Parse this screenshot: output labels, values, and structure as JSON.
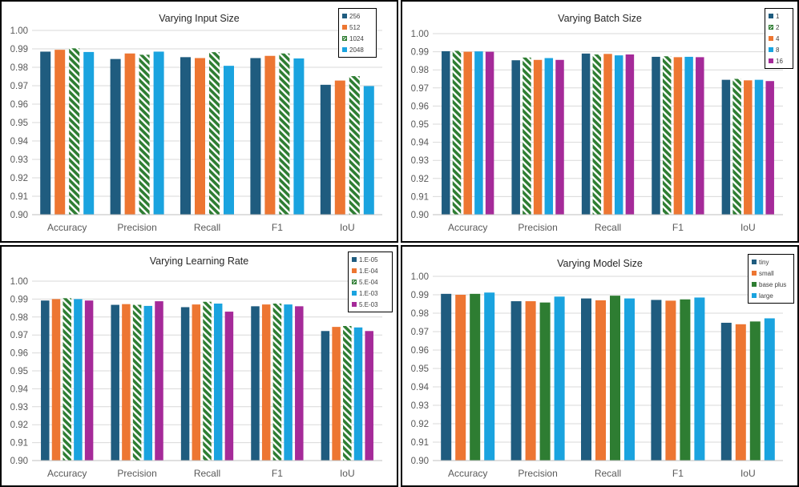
{
  "colors": {
    "navy": "#1F5C7F",
    "orange": "#ED7632",
    "green": "#2E7D32",
    "blue": "#1AA3DF",
    "purple": "#A52A99"
  },
  "chart_data": [
    {
      "type": "bar",
      "title": "Varying Input Size",
      "categories": [
        "Accuracy",
        "Precision",
        "Recall",
        "F1",
        "IoU"
      ],
      "ylim": [
        0.9,
        1.0
      ],
      "yticks": [
        "0.90",
        "0.91",
        "0.92",
        "0.93",
        "0.94",
        "0.95",
        "0.96",
        "0.97",
        "0.98",
        "0.99",
        "1.00"
      ],
      "legend_position": "top-right",
      "series": [
        {
          "name": "256",
          "color": "#1F5C7F",
          "pattern": "solid",
          "values": [
            0.9885,
            0.9845,
            0.9855,
            0.985,
            0.9705
          ]
        },
        {
          "name": "512",
          "color": "#ED7632",
          "pattern": "solid",
          "values": [
            0.9895,
            0.9875,
            0.985,
            0.9862,
            0.9728
          ]
        },
        {
          "name": "1024",
          "color": "#2E7D32",
          "pattern": "hatch",
          "values": [
            0.9903,
            0.9868,
            0.9882,
            0.9875,
            0.9752
          ]
        },
        {
          "name": "2048",
          "color": "#1AA3DF",
          "pattern": "solid",
          "values": [
            0.9883,
            0.9885,
            0.9808,
            0.9848,
            0.9698
          ]
        }
      ]
    },
    {
      "type": "bar",
      "title": "Varying Batch Size",
      "categories": [
        "Accuracy",
        "Precision",
        "Recall",
        "F1",
        "IoU"
      ],
      "ylim": [
        0.9,
        1.0
      ],
      "yticks": [
        "0.90",
        "0.91",
        "0.92",
        "0.93",
        "0.94",
        "0.95",
        "0.96",
        "0.97",
        "0.98",
        "0.99",
        "1.00"
      ],
      "legend_position": "top-right",
      "series": [
        {
          "name": "1",
          "color": "#1F5C7F",
          "pattern": "solid",
          "values": [
            0.9903,
            0.9853,
            0.989,
            0.9872,
            0.9745
          ]
        },
        {
          "name": "2",
          "color": "#2E7D32",
          "pattern": "hatch",
          "values": [
            0.9905,
            0.9868,
            0.9885,
            0.9875,
            0.975
          ]
        },
        {
          "name": "4",
          "color": "#ED7632",
          "pattern": "solid",
          "values": [
            0.99,
            0.9855,
            0.9888,
            0.987,
            0.9742
          ]
        },
        {
          "name": "8",
          "color": "#1AA3DF",
          "pattern": "solid",
          "values": [
            0.9902,
            0.9865,
            0.988,
            0.9872,
            0.9745
          ]
        },
        {
          "name": "16",
          "color": "#A52A99",
          "pattern": "solid",
          "values": [
            0.99,
            0.9855,
            0.9885,
            0.987,
            0.9738
          ]
        }
      ]
    },
    {
      "type": "bar",
      "title": "Varying Learning Rate",
      "categories": [
        "Accuracy",
        "Precision",
        "Recall",
        "F1",
        "IoU"
      ],
      "ylim": [
        0.9,
        1.0
      ],
      "yticks": [
        "0.90",
        "0.91",
        "0.92",
        "0.93",
        "0.94",
        "0.95",
        "0.96",
        "0.97",
        "0.98",
        "0.99",
        "1.00"
      ],
      "legend_position": "top-right",
      "series": [
        {
          "name": "1.E-05",
          "color": "#1F5C7F",
          "pattern": "solid",
          "values": [
            0.9892,
            0.9868,
            0.9855,
            0.986,
            0.9722
          ]
        },
        {
          "name": "1.E-04",
          "color": "#ED7632",
          "pattern": "solid",
          "values": [
            0.99,
            0.9872,
            0.987,
            0.987,
            0.9745
          ]
        },
        {
          "name": "5.E-04",
          "color": "#2E7D32",
          "pattern": "hatch",
          "values": [
            0.9905,
            0.9868,
            0.9885,
            0.9875,
            0.975
          ]
        },
        {
          "name": "1.E-03",
          "color": "#1AA3DF",
          "pattern": "solid",
          "values": [
            0.99,
            0.9862,
            0.9875,
            0.987,
            0.9742
          ]
        },
        {
          "name": "5.E-03",
          "color": "#A52A99",
          "pattern": "solid",
          "values": [
            0.9892,
            0.9888,
            0.983,
            0.986,
            0.9722
          ]
        }
      ]
    },
    {
      "type": "bar",
      "title": "Varying Model Size",
      "categories": [
        "Accuracy",
        "Precision",
        "Recall",
        "F1",
        "IoU"
      ],
      "ylim": [
        0.9,
        1.0
      ],
      "yticks": [
        "0.90",
        "0.91",
        "0.92",
        "0.93",
        "0.94",
        "0.95",
        "0.96",
        "0.97",
        "0.98",
        "0.99",
        "1.00"
      ],
      "legend_position": "top-right",
      "series": [
        {
          "name": "tiny",
          "color": "#1F5C7F",
          "pattern": "solid",
          "values": [
            0.9905,
            0.9865,
            0.988,
            0.9872,
            0.9748
          ]
        },
        {
          "name": "small",
          "color": "#ED7632",
          "pattern": "solid",
          "values": [
            0.99,
            0.9865,
            0.987,
            0.9868,
            0.974
          ]
        },
        {
          "name": "base plus",
          "color": "#2E7D32",
          "pattern": "solid",
          "values": [
            0.9905,
            0.9858,
            0.9895,
            0.9875,
            0.9755
          ]
        },
        {
          "name": "large",
          "color": "#1AA3DF",
          "pattern": "solid",
          "values": [
            0.9912,
            0.989,
            0.988,
            0.9885,
            0.9772
          ]
        }
      ]
    }
  ]
}
